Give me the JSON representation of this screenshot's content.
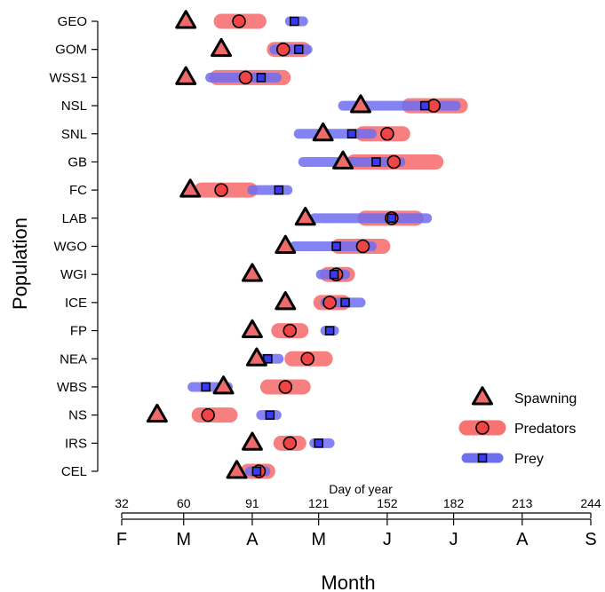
{
  "chart_data": {
    "type": "range",
    "title": "",
    "xlabel": "Month",
    "ylabel": "Population",
    "secondary_xlabel": "Day of year",
    "xlim": [
      32,
      244
    ],
    "day_ticks": [
      32,
      60,
      91,
      121,
      152,
      182,
      213,
      244
    ],
    "month_ticks": [
      {
        "label": "F",
        "day": 32
      },
      {
        "label": "M",
        "day": 60
      },
      {
        "label": "A",
        "day": 91
      },
      {
        "label": "M",
        "day": 121
      },
      {
        "label": "J",
        "day": 152
      },
      {
        "label": "J",
        "day": 182
      },
      {
        "label": "A",
        "day": 213
      },
      {
        "label": "S",
        "day": 244
      }
    ],
    "populations": [
      {
        "name": "GEO",
        "spawning": 61,
        "predators": {
          "min": 77,
          "max": 94,
          "peak": 85
        },
        "prey": {
          "min": 108,
          "max": 114,
          "peak": 110
        }
      },
      {
        "name": "GOM",
        "spawning": 77,
        "predators": {
          "min": 101,
          "max": 114,
          "peak": 105
        },
        "prey": {
          "min": 101,
          "max": 116,
          "peak": 112
        }
      },
      {
        "name": "WSS1",
        "spawning": 61,
        "predators": {
          "min": 75,
          "max": 105,
          "peak": 88
        },
        "prey": {
          "min": 72,
          "max": 102,
          "peak": 95
        }
      },
      {
        "name": "NSL",
        "spawning": 140,
        "predators": {
          "min": 162,
          "max": 185,
          "peak": 173
        },
        "prey": {
          "min": 132,
          "max": 183,
          "peak": 169
        }
      },
      {
        "name": "SNL",
        "spawning": 123,
        "predators": {
          "min": 141,
          "max": 159,
          "peak": 152
        },
        "prey": {
          "min": 112,
          "max": 145,
          "peak": 136
        }
      },
      {
        "name": "GB",
        "spawning": 132,
        "predators": {
          "min": 137,
          "max": 174,
          "peak": 155
        },
        "prey": {
          "min": 114,
          "max": 158,
          "peak": 147
        }
      },
      {
        "name": "FC",
        "spawning": 63,
        "predators": {
          "min": 68,
          "max": 90,
          "peak": 77
        },
        "prey": {
          "min": 91,
          "max": 107,
          "peak": 103
        }
      },
      {
        "name": "LAB",
        "spawning": 115,
        "predators": {
          "min": 142,
          "max": 165,
          "peak": 154
        },
        "prey": {
          "min": 119,
          "max": 170,
          "peak": 154
        }
      },
      {
        "name": "WGO",
        "spawning": 106,
        "predators": {
          "min": 130,
          "max": 150,
          "peak": 141
        },
        "prey": {
          "min": 110,
          "max": 145,
          "peak": 129
        }
      },
      {
        "name": "WGI",
        "spawning": 91,
        "predators": {
          "min": 125,
          "max": 134,
          "peak": 129
        },
        "prey": {
          "min": 122,
          "max": 133,
          "peak": 128
        }
      },
      {
        "name": "ICE",
        "spawning": 106,
        "predators": {
          "min": 122,
          "max": 132,
          "peak": 126
        },
        "prey": {
          "min": 124,
          "max": 140,
          "peak": 133
        }
      },
      {
        "name": "FP",
        "spawning": 91,
        "predators": {
          "min": 103,
          "max": 113,
          "peak": 108
        },
        "prey": {
          "min": 124,
          "max": 128,
          "peak": 126
        }
      },
      {
        "name": "NEA",
        "spawning": 93,
        "predators": {
          "min": 109,
          "max": 124,
          "peak": 116
        },
        "prey": {
          "min": 93,
          "max": 103,
          "peak": 98
        }
      },
      {
        "name": "WBS",
        "spawning": 78,
        "predators": {
          "min": 98,
          "max": 114,
          "peak": 106
        },
        "prey": {
          "min": 64,
          "max": 80,
          "peak": 70
        }
      },
      {
        "name": "NS",
        "spawning": 48,
        "predators": {
          "min": 67,
          "max": 81,
          "peak": 71
        },
        "prey": {
          "min": 95,
          "max": 102,
          "peak": 99
        }
      },
      {
        "name": "IRS",
        "spawning": 91,
        "predators": {
          "min": 104,
          "max": 112,
          "peak": 108
        },
        "prey": {
          "min": 119,
          "max": 126,
          "peak": 121
        }
      },
      {
        "name": "CEL",
        "spawning": 84,
        "predators": {
          "min": 89,
          "max": 98,
          "peak": 94
        },
        "prey": {
          "min": 90,
          "max": 97,
          "peak": 93
        }
      }
    ],
    "legend": {
      "placement": "bottom-right",
      "entries": [
        {
          "key": "spawning",
          "label": "Spawning"
        },
        {
          "key": "predators",
          "label": "Predators"
        },
        {
          "key": "prey",
          "label": "Prey"
        }
      ]
    },
    "colors": {
      "spawning_fill": "#ef6b6b",
      "predators_band": "#f87272",
      "predators_marker": "#f24444",
      "prey_band": "#6e6ef2",
      "prey_marker": "#3a3af0",
      "outline": "#000000"
    },
    "grid": false
  }
}
